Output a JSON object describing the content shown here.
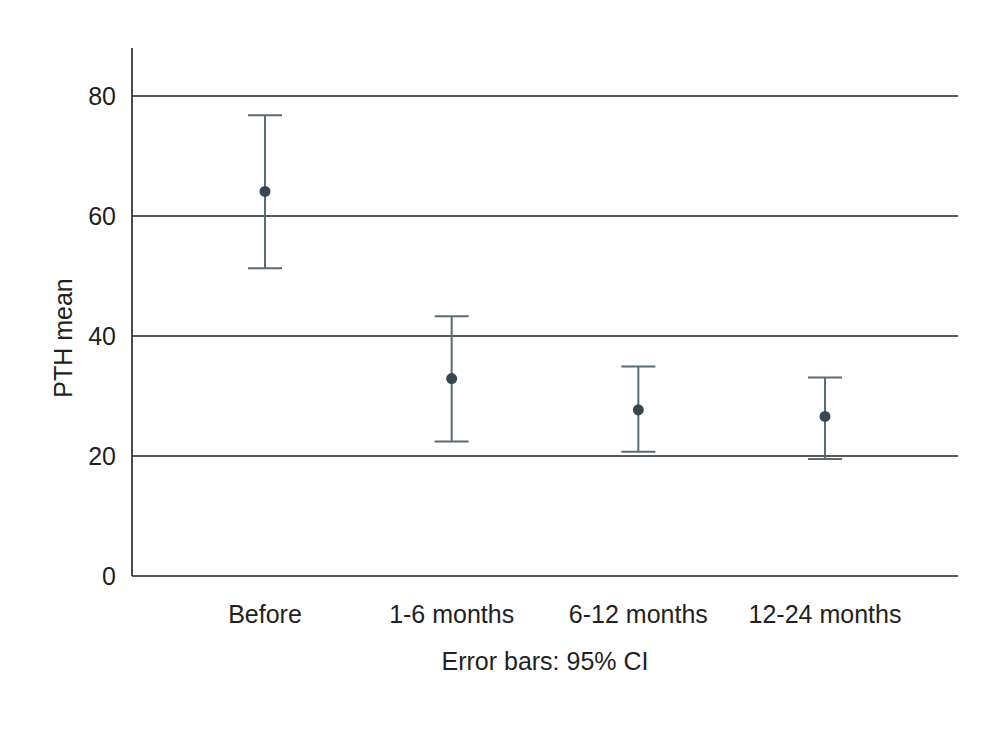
{
  "chart_data": {
    "type": "errorbar",
    "y_label": "PTH mean",
    "annotation": "Error bars: 95% CI",
    "categories": [
      "Before",
      "1-6 months",
      "6-12 months",
      "12-24 months"
    ],
    "values": [
      64.1,
      32.9,
      27.7,
      26.6
    ],
    "ci_lower": [
      51.3,
      22.4,
      20.7,
      19.5
    ],
    "ci_upper": [
      76.8,
      43.3,
      34.9,
      33.1
    ],
    "color": "#37474f",
    "ylim": [
      0,
      88
    ],
    "yticks": [
      0,
      20,
      40,
      60,
      80
    ],
    "grid": true
  }
}
